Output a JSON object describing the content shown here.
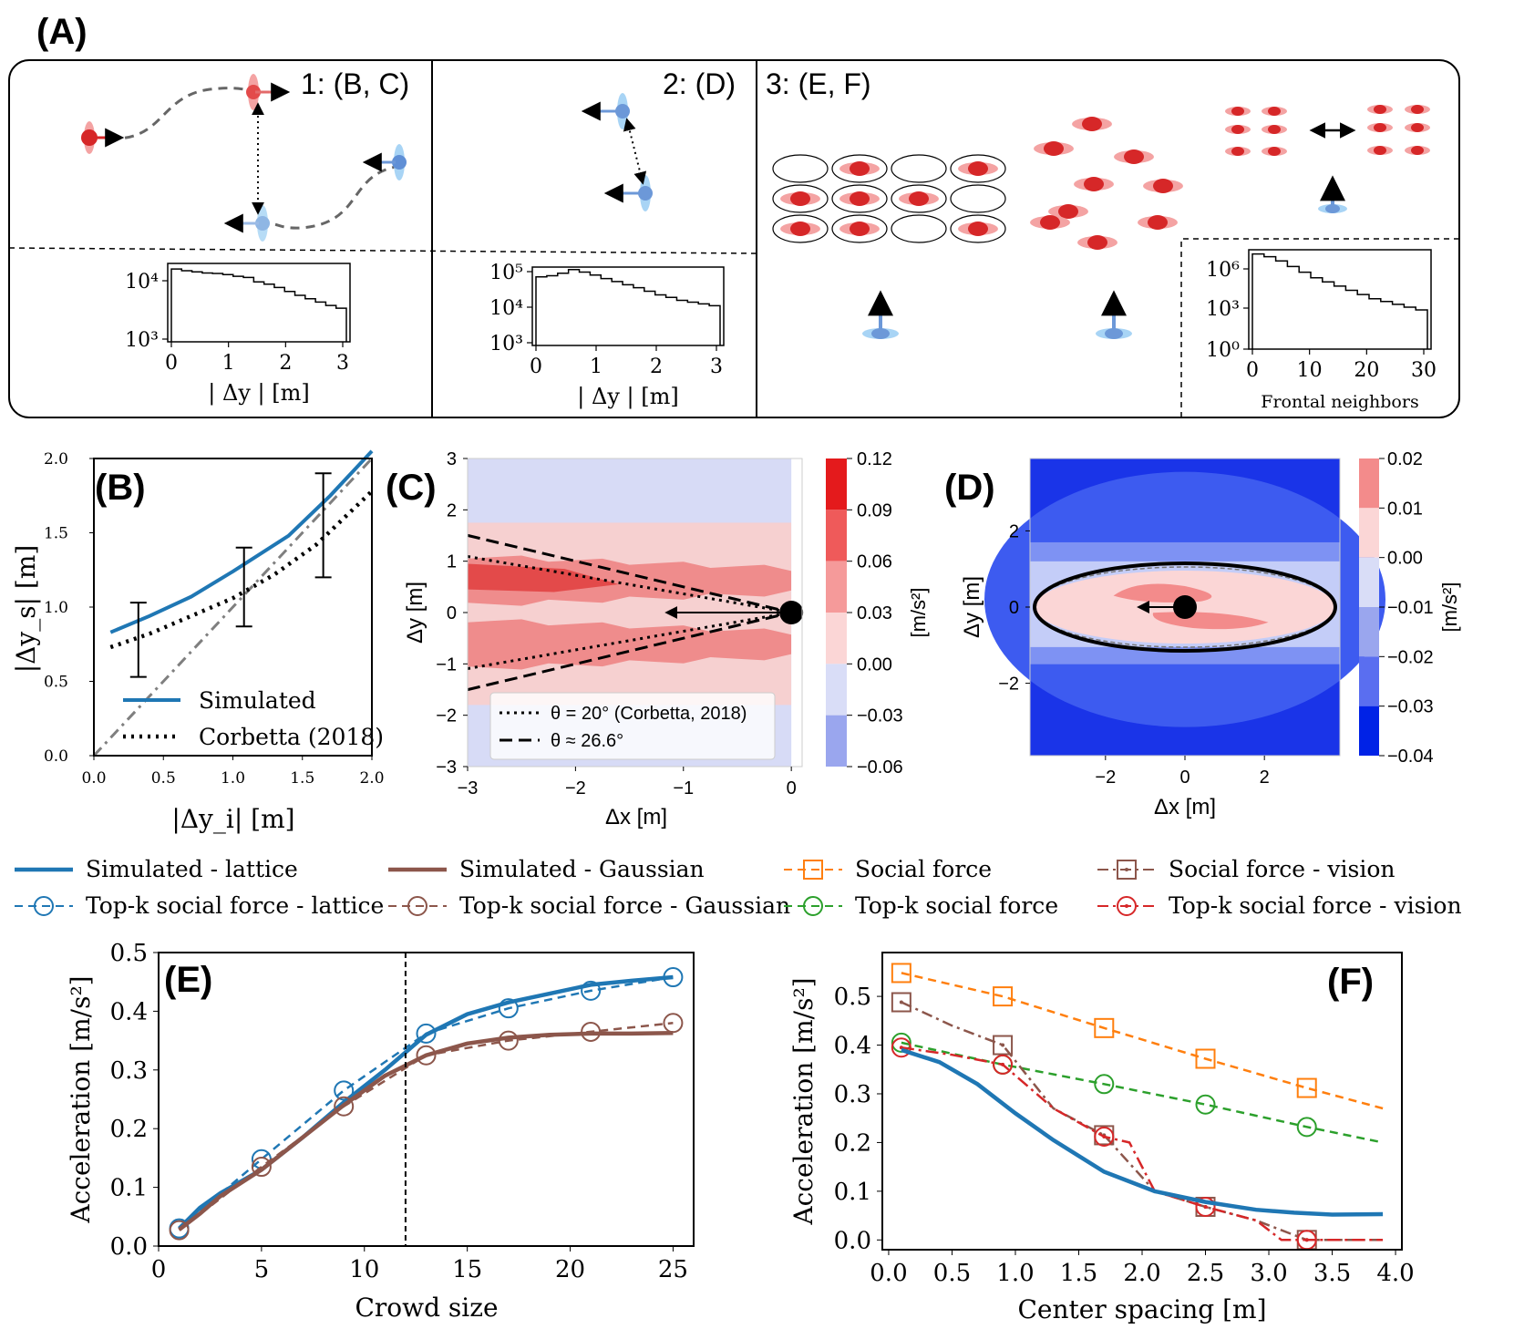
{
  "panel_A": {
    "label": "(A)",
    "sub1_title": "1: (B, C)",
    "sub2_title": "2: (D)",
    "sub3_title": "3: (E, F)",
    "hist1": {
      "ylabel_ticks": [
        "10⁴",
        "10³"
      ],
      "xticks": [
        "0",
        "1",
        "2",
        "3"
      ],
      "xlabel": "| Δy | [m]",
      "values": [
        4.25,
        4.22,
        4.2,
        4.18,
        4.17,
        4.15,
        4.12,
        4.1,
        4.02,
        3.98,
        3.92,
        3.85,
        3.78,
        3.72,
        3.66,
        3.6,
        3.55
      ]
    },
    "hist2": {
      "ylabel_ticks": [
        "10⁵",
        "10⁴",
        "10³"
      ],
      "xticks": [
        "0",
        "1",
        "2",
        "3"
      ],
      "xlabel": "| Δy | [m]",
      "values": [
        4.85,
        4.88,
        4.95,
        5.05,
        4.98,
        4.9,
        4.8,
        4.72,
        4.63,
        4.55,
        4.45,
        4.35,
        4.28,
        4.2,
        4.15,
        4.1,
        4.05
      ]
    },
    "hist3": {
      "ylabel_ticks": [
        "10⁶",
        "10³",
        "10⁰"
      ],
      "xticks": [
        "0",
        "10",
        "20",
        "30"
      ],
      "xlabel": "Frontal neighbors",
      "values": [
        6.7,
        6.5,
        6.2,
        5.8,
        5.4,
        5.0,
        4.7,
        4.4,
        4.1,
        3.8,
        3.5,
        3.3,
        3.1,
        2.9,
        2.7
      ]
    }
  },
  "chart_data": [
    {
      "id": "B",
      "type": "line",
      "label": "(B)",
      "xlabel": "|Δy_i| [m]",
      "ylabel": "|Δy_s| [m]",
      "xlim": [
        0,
        2
      ],
      "ylim": [
        0,
        2
      ],
      "xticks": [
        "0.0",
        "0.5",
        "1.0",
        "1.5",
        "2.0"
      ],
      "yticks": [
        "0.0",
        "0.5",
        "1.0",
        "1.5",
        "2.0"
      ],
      "series": [
        {
          "name": "Simulated",
          "x": [
            0.12,
            0.4,
            0.7,
            1.0,
            1.4,
            1.7,
            2.0
          ],
          "y": [
            0.83,
            0.94,
            1.07,
            1.24,
            1.48,
            1.75,
            2.05
          ]
        },
        {
          "name": "Corbetta (2018)",
          "x": [
            0.12,
            0.4,
            0.7,
            1.0,
            1.3,
            1.6,
            2.0
          ],
          "y": [
            0.73,
            0.82,
            0.94,
            1.06,
            1.22,
            1.42,
            1.78
          ]
        },
        {
          "x": [
            0,
            2
          ],
          "y": [
            0,
            2
          ]
        }
      ],
      "errorbars": [
        {
          "x": 0.32,
          "y": 0.78,
          "lo": 0.53,
          "hi": 1.03
        },
        {
          "x": 1.08,
          "y": 1.13,
          "lo": 0.87,
          "hi": 1.4
        },
        {
          "x": 1.65,
          "y": 1.55,
          "lo": 1.2,
          "hi": 1.9
        }
      ],
      "legend": "lower-right"
    },
    {
      "id": "C",
      "type": "heatmap",
      "label": "(C)",
      "xlabel": "Δx [m]",
      "ylabel": "Δy [m]",
      "xlim": [
        -3,
        0.1
      ],
      "ylim": [
        -3,
        3
      ],
      "xticks": [
        "−3",
        "−2",
        "−1",
        "0"
      ],
      "yticks": [
        "−3",
        "−2",
        "−1",
        "0",
        "1",
        "2",
        "3"
      ],
      "colorbar": {
        "label": "[m/s²]",
        "ticks": [
          "0.12",
          "0.09",
          "0.06",
          "0.03",
          "0.00",
          "−0.03",
          "−0.06"
        ]
      },
      "lines": [
        {
          "name": "θ = 20° (Corbetta, 2018)",
          "style": "dotted"
        },
        {
          "name": "θ ≈ 26.6°",
          "style": "dashed"
        }
      ]
    },
    {
      "id": "D",
      "type": "heatmap",
      "label": "(D)",
      "xlabel": "Δx [m]",
      "ylabel": "Δy [m]",
      "xlim": [
        -3.9,
        3.9
      ],
      "ylim": [
        -3.9,
        3.9
      ],
      "xticks": [
        "−2",
        "0",
        "2"
      ],
      "yticks": [
        "−2",
        "0",
        "2"
      ],
      "colorbar": {
        "label": "[m/s²]",
        "ticks": [
          "0.02",
          "0.01",
          "0.00",
          "−0.01",
          "−0.02",
          "−0.03",
          "−0.04"
        ]
      }
    },
    {
      "id": "E",
      "type": "line",
      "label": "(E)",
      "xlabel": "Crowd size",
      "ylabel": "Acceleration [m/s²]",
      "xlim": [
        0,
        26
      ],
      "ylim": [
        0,
        0.5
      ],
      "xticks": [
        "0",
        "5",
        "10",
        "15",
        "20",
        "25"
      ],
      "yticks": [
        "0.0",
        "0.1",
        "0.2",
        "0.3",
        "0.4",
        "0.5"
      ],
      "vline": 12,
      "series": [
        {
          "name": "Simulated - lattice",
          "x": [
            1,
            2,
            3,
            5,
            7,
            9,
            11,
            13,
            15,
            17,
            19,
            21,
            23,
            25
          ],
          "y": [
            0.03,
            0.065,
            0.09,
            0.13,
            0.185,
            0.245,
            0.3,
            0.36,
            0.395,
            0.415,
            0.43,
            0.445,
            0.452,
            0.458
          ]
        },
        {
          "name": "Top-k social force - lattice",
          "x": [
            1,
            5,
            9,
            13,
            17,
            21,
            25
          ],
          "y": [
            0.03,
            0.148,
            0.265,
            0.362,
            0.405,
            0.435,
            0.458
          ]
        },
        {
          "name": "Simulated - Gaussian",
          "x": [
            1,
            2,
            3,
            5,
            7,
            9,
            11,
            13,
            15,
            17,
            19,
            21,
            23,
            25
          ],
          "y": [
            0.028,
            0.055,
            0.085,
            0.13,
            0.185,
            0.24,
            0.29,
            0.325,
            0.345,
            0.355,
            0.36,
            0.362,
            0.362,
            0.363
          ]
        },
        {
          "name": "Top-k social force - Gaussian",
          "x": [
            1,
            5,
            9,
            13,
            17,
            21,
            25
          ],
          "y": [
            0.027,
            0.135,
            0.238,
            0.325,
            0.35,
            0.365,
            0.38
          ]
        }
      ]
    },
    {
      "id": "F",
      "type": "line",
      "label": "(F)",
      "xlabel": "Center spacing [m]",
      "ylabel": "Acceleration [m/s²]",
      "xlim": [
        -0.05,
        4.05
      ],
      "ylim": [
        -0.02,
        0.59
      ],
      "xticks": [
        "0.0",
        "0.5",
        "1.0",
        "1.5",
        "2.0",
        "2.5",
        "3.0",
        "3.5",
        "4.0"
      ],
      "yticks": [
        "0.0",
        "0.1",
        "0.2",
        "0.3",
        "0.4",
        "0.5"
      ],
      "series": [
        {
          "name": "Social force",
          "x": [
            0.1,
            0.9,
            1.7,
            2.5,
            3.3,
            3.9
          ],
          "y": [
            0.548,
            0.5,
            0.435,
            0.372,
            0.312,
            0.27
          ]
        },
        {
          "name": "Top-k social force",
          "x": [
            0.1,
            0.9,
            1.7,
            2.5,
            3.3,
            3.9
          ],
          "y": [
            0.405,
            0.36,
            0.32,
            0.278,
            0.232,
            0.2
          ]
        },
        {
          "name": "Social force - vision",
          "x": [
            0.1,
            0.5,
            0.9,
            1.3,
            1.7,
            2.1,
            2.5,
            2.9,
            3.3,
            3.9
          ],
          "y": [
            0.488,
            0.44,
            0.4,
            0.27,
            0.215,
            0.1,
            0.068,
            0.04,
            0.0,
            0.0
          ]
        },
        {
          "name": "Top-k social force - vision",
          "x": [
            0.1,
            0.5,
            0.9,
            1.3,
            1.7,
            1.9,
            2.1,
            2.5,
            2.9,
            3.1,
            3.3,
            3.9
          ],
          "y": [
            0.395,
            0.38,
            0.36,
            0.27,
            0.212,
            0.2,
            0.1,
            0.068,
            0.04,
            0.0,
            0.0,
            0.0
          ]
        },
        {
          "name": "Simulated - lattice",
          "x": [
            0.1,
            0.4,
            0.7,
            1.0,
            1.3,
            1.7,
            2.1,
            2.5,
            2.9,
            3.2,
            3.5,
            3.9
          ],
          "y": [
            0.39,
            0.365,
            0.32,
            0.26,
            0.205,
            0.14,
            0.1,
            0.078,
            0.062,
            0.056,
            0.052,
            0.053
          ]
        }
      ]
    }
  ],
  "legend_EF": [
    {
      "name": "Simulated - lattice",
      "color": "#1f77b4",
      "style": "solid"
    },
    {
      "name": "Simulated - Gaussian",
      "color": "#8c564b",
      "style": "solid"
    },
    {
      "name": "Social force",
      "color": "#ff7f0e",
      "style": "dashed-square"
    },
    {
      "name": "Social force - vision",
      "color": "#8c564b",
      "style": "dashdot-square"
    },
    {
      "name": "Top-k social force - lattice",
      "color": "#1f77b4",
      "style": "dashed-circle"
    },
    {
      "name": "Top-k social force - Gaussian",
      "color": "#8c564b",
      "style": "dashed-circle"
    },
    {
      "name": "Top-k social force",
      "color": "#2ca02c",
      "style": "dashed-circle"
    },
    {
      "name": "Top-k social force - vision",
      "color": "#d62728",
      "style": "dashdot-circle"
    }
  ],
  "colors": {
    "blue": "#1f77b4",
    "brown": "#8c564b",
    "orange": "#ff7f0e",
    "green": "#2ca02c",
    "red": "#d62728"
  }
}
